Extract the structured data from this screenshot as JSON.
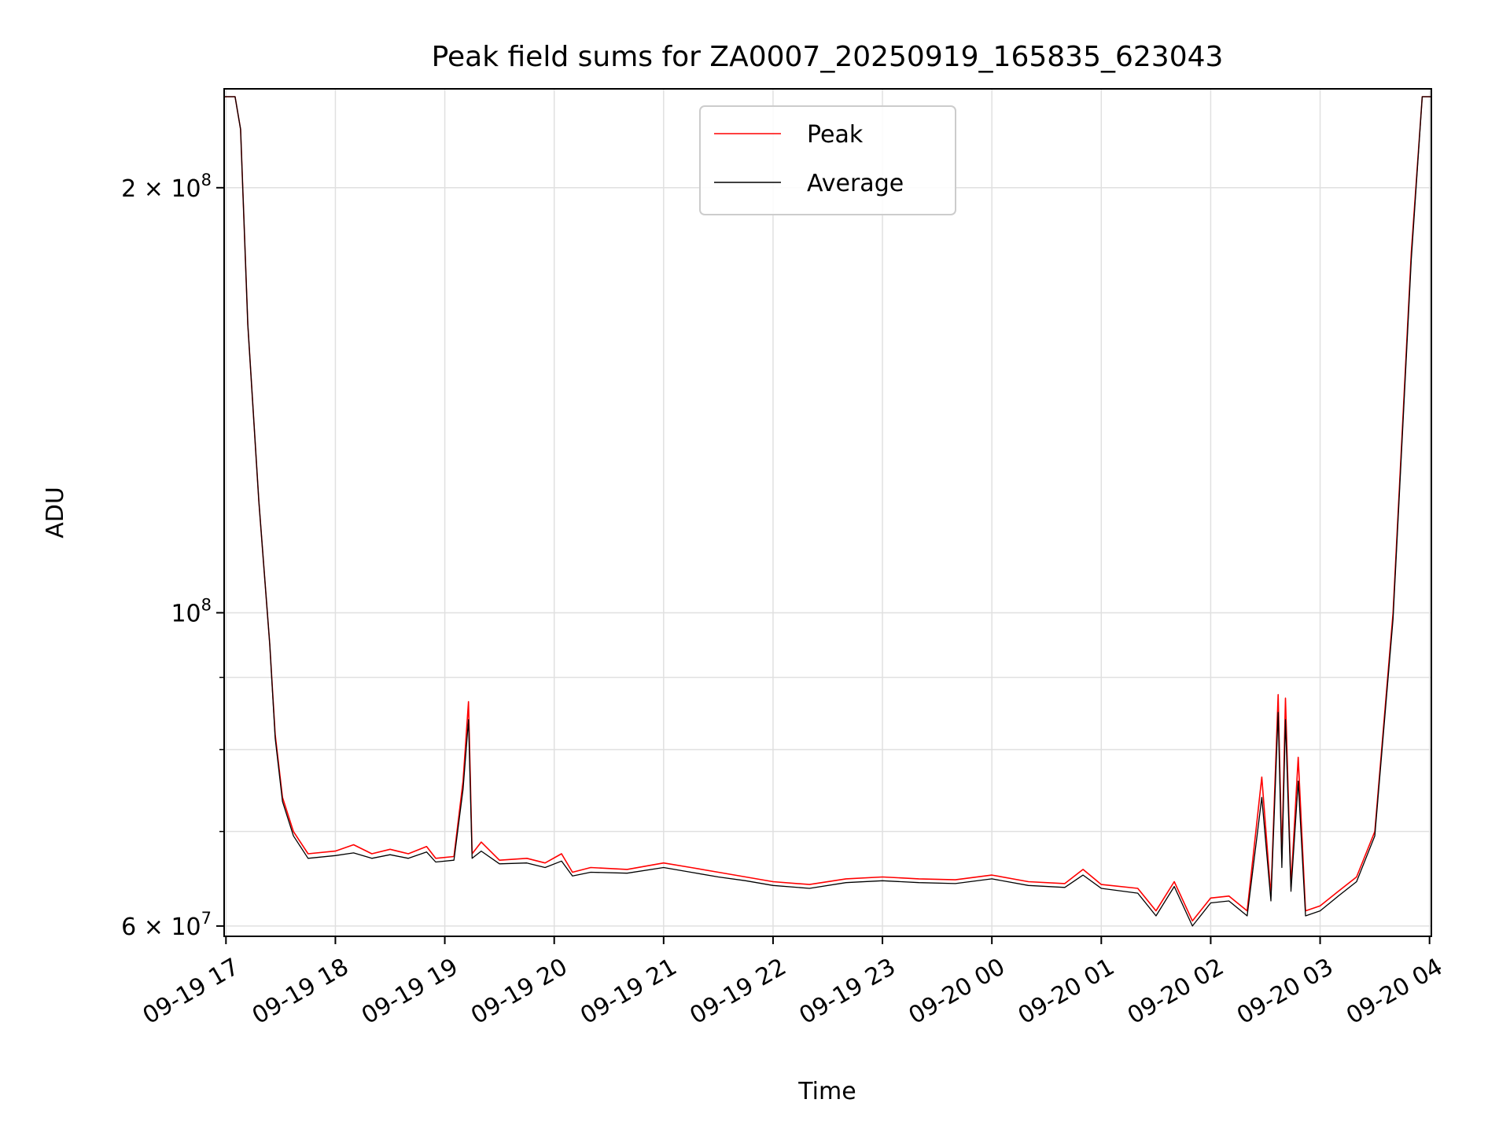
{
  "chart_data": {
    "type": "line",
    "title": "Peak field sums for ZA0007_20250919_165835_623043",
    "xlabel": "Time",
    "ylabel": "ADU",
    "yscale": "log",
    "ylim": [
      59000000,
      235000000
    ],
    "xlim": [
      "09-19 16:59",
      "09-20 04:01"
    ],
    "grid": true,
    "legend_position": "upper center",
    "colors": {
      "peak": "#ff0000",
      "average": "#000000",
      "grid": "#e0e0e0"
    },
    "x_ticks": [
      {
        "t": "09-19 17:00",
        "label": "09-19 17"
      },
      {
        "t": "09-19 18:00",
        "label": "09-19 18"
      },
      {
        "t": "09-19 19:00",
        "label": "09-19 19"
      },
      {
        "t": "09-19 20:00",
        "label": "09-19 20"
      },
      {
        "t": "09-19 21:00",
        "label": "09-19 21"
      },
      {
        "t": "09-19 22:00",
        "label": "09-19 22"
      },
      {
        "t": "09-19 23:00",
        "label": "09-19 23"
      },
      {
        "t": "09-20 00:00",
        "label": "09-20 00"
      },
      {
        "t": "09-20 01:00",
        "label": "09-20 01"
      },
      {
        "t": "09-20 02:00",
        "label": "09-20 02"
      },
      {
        "t": "09-20 03:00",
        "label": "09-20 03"
      },
      {
        "t": "09-20 04:00",
        "label": "09-20 04"
      }
    ],
    "y_major_ticks": [
      {
        "value": 60000000,
        "mant": "6",
        "exp": "7"
      },
      {
        "value": 100000000,
        "mant": "",
        "exp": "8"
      },
      {
        "value": 200000000,
        "mant": "2",
        "exp": "8"
      }
    ],
    "y_minor_ticks": [
      70000000,
      80000000,
      90000000
    ],
    "series": [
      {
        "name": "Peak",
        "color": "#ff0000",
        "points": [
          [
            "09-19 16:59",
            232000000
          ],
          [
            "09-19 17:05",
            232000000
          ],
          [
            "09-19 17:08",
            220000000
          ],
          [
            "09-19 17:12",
            160000000
          ],
          [
            "09-19 17:18",
            120000000
          ],
          [
            "09-19 17:24",
            95000000
          ],
          [
            "09-19 17:27",
            82000000
          ],
          [
            "09-19 17:31",
            74000000
          ],
          [
            "09-19 17:37",
            70000000
          ],
          [
            "09-19 17:45",
            67500000
          ],
          [
            "09-19 18:00",
            67800000
          ],
          [
            "09-19 18:10",
            68500000
          ],
          [
            "09-19 18:20",
            67500000
          ],
          [
            "09-19 18:30",
            68000000
          ],
          [
            "09-19 18:40",
            67500000
          ],
          [
            "09-19 18:50",
            68300000
          ],
          [
            "09-19 18:55",
            67000000
          ],
          [
            "09-19 19:05",
            67200000
          ],
          [
            "09-19 19:10",
            76000000
          ],
          [
            "09-19 19:13",
            86500000
          ],
          [
            "09-19 19:15",
            67500000
          ],
          [
            "09-19 19:20",
            68800000
          ],
          [
            "09-19 19:30",
            66800000
          ],
          [
            "09-19 19:45",
            67000000
          ],
          [
            "09-19 19:55",
            66500000
          ],
          [
            "09-19 20:04",
            67500000
          ],
          [
            "09-19 20:10",
            65500000
          ],
          [
            "09-19 20:20",
            66000000
          ],
          [
            "09-19 20:40",
            65800000
          ],
          [
            "09-19 21:00",
            66500000
          ],
          [
            "09-19 21:15",
            66000000
          ],
          [
            "09-19 21:30",
            65500000
          ],
          [
            "09-19 21:45",
            65000000
          ],
          [
            "09-19 22:00",
            64500000
          ],
          [
            "09-19 22:20",
            64200000
          ],
          [
            "09-19 22:40",
            64800000
          ],
          [
            "09-19 23:00",
            65000000
          ],
          [
            "09-19 23:20",
            64800000
          ],
          [
            "09-19 23:40",
            64700000
          ],
          [
            "09-20 00:00",
            65200000
          ],
          [
            "09-20 00:20",
            64500000
          ],
          [
            "09-20 00:40",
            64300000
          ],
          [
            "09-20 00:50",
            65800000
          ],
          [
            "09-20 01:00",
            64200000
          ],
          [
            "09-20 01:20",
            63800000
          ],
          [
            "09-20 01:30",
            61500000
          ],
          [
            "09-20 01:40",
            64500000
          ],
          [
            "09-20 01:50",
            60500000
          ],
          [
            "09-20 02:00",
            62800000
          ],
          [
            "09-20 02:10",
            63000000
          ],
          [
            "09-20 02:20",
            61500000
          ],
          [
            "09-20 02:28",
            76500000
          ],
          [
            "09-20 02:33",
            63000000
          ],
          [
            "09-20 02:37",
            87500000
          ],
          [
            "09-20 02:39",
            67000000
          ],
          [
            "09-20 02:41",
            87000000
          ],
          [
            "09-20 02:44",
            64000000
          ],
          [
            "09-20 02:48",
            79000000
          ],
          [
            "09-20 02:52",
            61500000
          ],
          [
            "09-20 03:00",
            62000000
          ],
          [
            "09-20 03:10",
            63500000
          ],
          [
            "09-20 03:20",
            65000000
          ],
          [
            "09-20 03:30",
            70000000
          ],
          [
            "09-20 03:40",
            100000000
          ],
          [
            "09-20 03:50",
            180000000
          ],
          [
            "09-20 03:56",
            232000000
          ],
          [
            "09-20 04:01",
            232000000
          ]
        ]
      },
      {
        "name": "Average",
        "color": "#000000",
        "points": [
          [
            "09-19 16:59",
            232000000
          ],
          [
            "09-19 17:05",
            232000000
          ],
          [
            "09-19 17:08",
            220000000
          ],
          [
            "09-19 17:12",
            160000000
          ],
          [
            "09-19 17:18",
            120000000
          ],
          [
            "09-19 17:24",
            95000000
          ],
          [
            "09-19 17:27",
            81500000
          ],
          [
            "09-19 17:31",
            73500000
          ],
          [
            "09-19 17:37",
            69500000
          ],
          [
            "09-19 17:45",
            67000000
          ],
          [
            "09-19 18:00",
            67300000
          ],
          [
            "09-19 18:10",
            67600000
          ],
          [
            "09-19 18:20",
            67000000
          ],
          [
            "09-19 18:30",
            67400000
          ],
          [
            "09-19 18:40",
            67000000
          ],
          [
            "09-19 18:50",
            67700000
          ],
          [
            "09-19 18:55",
            66600000
          ],
          [
            "09-19 19:05",
            66800000
          ],
          [
            "09-19 19:10",
            75000000
          ],
          [
            "09-19 19:13",
            84000000
          ],
          [
            "09-19 19:15",
            67000000
          ],
          [
            "09-19 19:20",
            67800000
          ],
          [
            "09-19 19:30",
            66400000
          ],
          [
            "09-19 19:45",
            66500000
          ],
          [
            "09-19 19:55",
            66000000
          ],
          [
            "09-19 20:04",
            66700000
          ],
          [
            "09-19 20:10",
            65100000
          ],
          [
            "09-19 20:20",
            65500000
          ],
          [
            "09-19 20:40",
            65400000
          ],
          [
            "09-19 21:00",
            66000000
          ],
          [
            "09-19 21:15",
            65500000
          ],
          [
            "09-19 21:30",
            65000000
          ],
          [
            "09-19 21:45",
            64600000
          ],
          [
            "09-19 22:00",
            64100000
          ],
          [
            "09-19 22:20",
            63800000
          ],
          [
            "09-19 22:40",
            64400000
          ],
          [
            "09-19 23:00",
            64600000
          ],
          [
            "09-19 23:20",
            64400000
          ],
          [
            "09-19 23:40",
            64300000
          ],
          [
            "09-20 00:00",
            64800000
          ],
          [
            "09-20 00:20",
            64100000
          ],
          [
            "09-20 00:40",
            63900000
          ],
          [
            "09-20 00:50",
            65200000
          ],
          [
            "09-20 01:00",
            63800000
          ],
          [
            "09-20 01:20",
            63300000
          ],
          [
            "09-20 01:30",
            61000000
          ],
          [
            "09-20 01:40",
            64000000
          ],
          [
            "09-20 01:50",
            60000000
          ],
          [
            "09-20 02:00",
            62300000
          ],
          [
            "09-20 02:10",
            62500000
          ],
          [
            "09-20 02:20",
            61000000
          ],
          [
            "09-20 02:28",
            74000000
          ],
          [
            "09-20 02:33",
            62500000
          ],
          [
            "09-20 02:37",
            85000000
          ],
          [
            "09-20 02:39",
            66000000
          ],
          [
            "09-20 02:41",
            84000000
          ],
          [
            "09-20 02:44",
            63500000
          ],
          [
            "09-20 02:48",
            76000000
          ],
          [
            "09-20 02:52",
            61000000
          ],
          [
            "09-20 03:00",
            61500000
          ],
          [
            "09-20 03:10",
            63000000
          ],
          [
            "09-20 03:20",
            64500000
          ],
          [
            "09-20 03:30",
            69500000
          ],
          [
            "09-20 03:40",
            99000000
          ],
          [
            "09-20 03:50",
            178000000
          ],
          [
            "09-20 03:56",
            232000000
          ],
          [
            "09-20 04:01",
            232000000
          ]
        ]
      }
    ]
  }
}
